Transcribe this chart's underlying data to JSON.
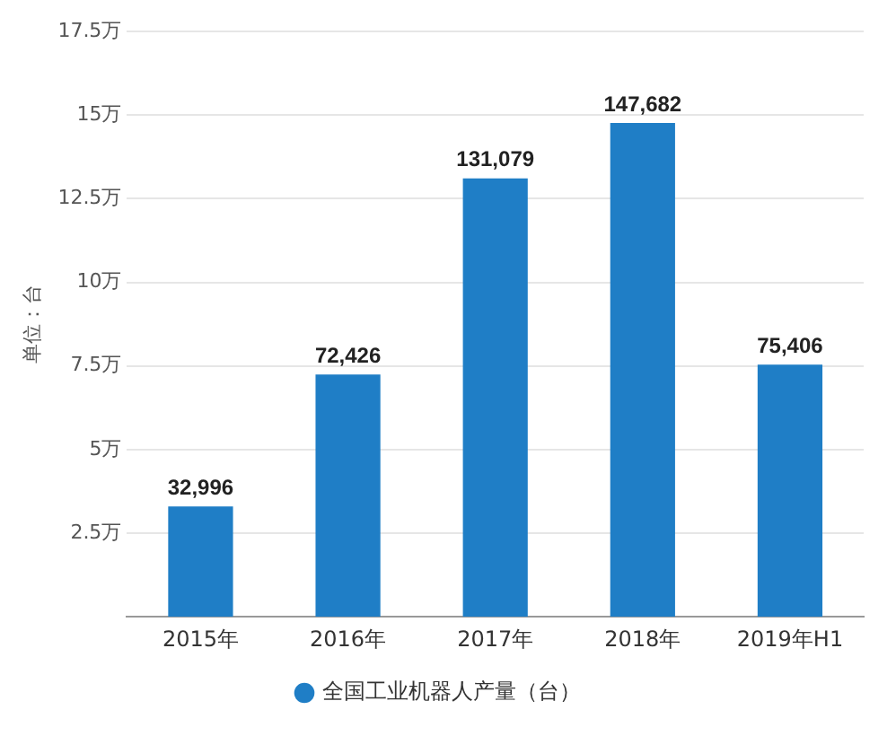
{
  "chart_data": {
    "type": "bar",
    "ylabel": "单位：台",
    "categories": [
      "2015年",
      "2016年",
      "2017年",
      "2018年",
      "2019年H1"
    ],
    "series": [
      {
        "name": "全国工业机器人产量（台）",
        "color": "#1f7ec6",
        "values": [
          3.2996,
          7.2426,
          13.1079,
          14.7682,
          7.5406
        ]
      }
    ],
    "value_labels": [
      "32,996",
      "72,426",
      "131,079",
      "147,682",
      "75,406"
    ],
    "ylim": [
      0,
      17.5
    ],
    "yticks": [
      {
        "value": 2.5,
        "label": "2.5万"
      },
      {
        "value": 5,
        "label": "5万"
      },
      {
        "value": 7.5,
        "label": "7.5万"
      },
      {
        "value": 10,
        "label": "10万"
      },
      {
        "value": 12.5,
        "label": "12.5万"
      },
      {
        "value": 15,
        "label": "15万"
      },
      {
        "value": 17.5,
        "label": "17.5万"
      }
    ],
    "grid": "y",
    "legend": "bottom"
  }
}
